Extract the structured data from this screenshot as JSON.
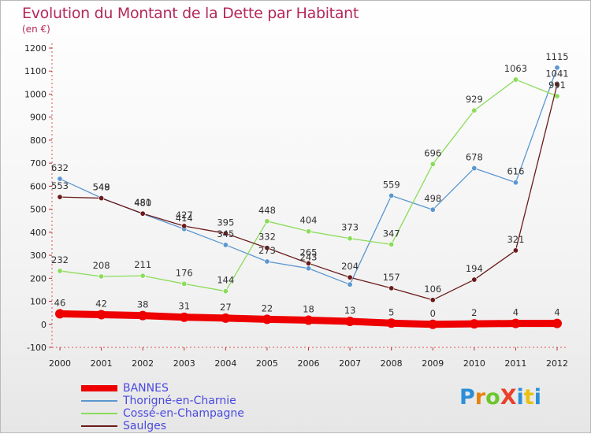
{
  "header": {
    "title": "Evolution du Montant de la Dette par Habitant",
    "unit": "(en €)"
  },
  "logo": {
    "text": "ProXiti",
    "letter_colors": [
      "#2a8fd8",
      "#e8820e",
      "#6cc62c",
      "#e8402a",
      "#2a8fd8",
      "#e8c010",
      "#2a8fd8"
    ]
  },
  "chart_data": {
    "type": "line",
    "x": [
      "2000",
      "2001",
      "2002",
      "2003",
      "2004",
      "2005",
      "2006",
      "2007",
      "2008",
      "2009",
      "2010",
      "2011",
      "2012"
    ],
    "ylim": [
      -100,
      1200
    ],
    "yticks": [
      "-100",
      "0",
      "100",
      "200",
      "300",
      "400",
      "500",
      "600",
      "700",
      "800",
      "900",
      "1000",
      "1100",
      "1200"
    ],
    "grid": false,
    "legend_position": "bottom-left",
    "series": [
      {
        "name": "BANNES",
        "color": "#ee0000",
        "values": [
          46,
          42,
          38,
          31,
          27,
          22,
          18,
          13,
          5,
          0,
          2,
          4,
          4
        ],
        "labels": [
          "46",
          "42",
          "38",
          "31",
          "27",
          "22",
          "18",
          "13",
          "5",
          "0",
          "2",
          "4",
          "4"
        ]
      },
      {
        "name": "Thorigné-en-Charnie",
        "color": "#5b97cf",
        "values": [
          632,
          549,
          480,
          414,
          345,
          273,
          243,
          173,
          559,
          498,
          678,
          616,
          1115
        ],
        "labels": [
          "632",
          "549",
          "480",
          "414",
          "345",
          "273",
          "243",
          "",
          "559",
          "498",
          "678",
          "616",
          "1115"
        ]
      },
      {
        "name": "Cossé-en-Champagne",
        "color": "#8bdc5a",
        "values": [
          232,
          208,
          211,
          176,
          144,
          448,
          404,
          373,
          347,
          696,
          929,
          1063,
          991
        ],
        "labels": [
          "232",
          "208",
          "211",
          "176",
          "144",
          "448",
          "404",
          "373",
          "347",
          "696",
          "929",
          "1063",
          "991"
        ]
      },
      {
        "name": "Saulges",
        "color": "#6b1a1a",
        "values": [
          553,
          548,
          481,
          427,
          395,
          332,
          265,
          204,
          157,
          106,
          194,
          321,
          1041
        ],
        "labels": [
          "553",
          "548",
          "481",
          "427",
          "395",
          "332",
          "265",
          "204",
          "157",
          "106",
          "194",
          "321",
          "1041"
        ]
      }
    ]
  }
}
